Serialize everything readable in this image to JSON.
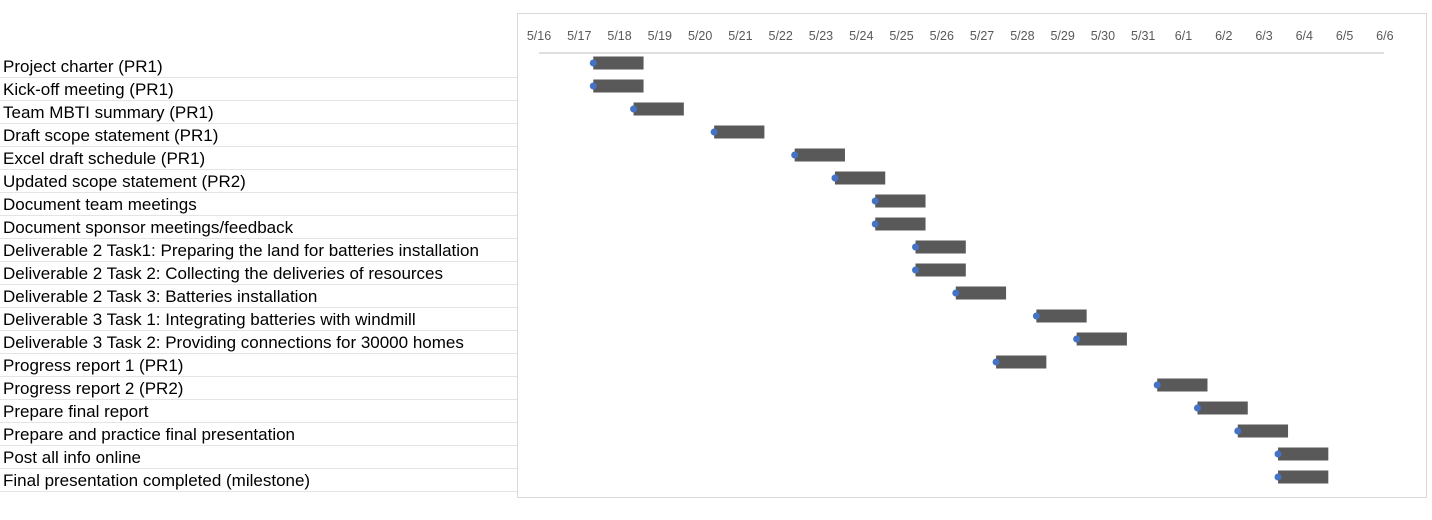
{
  "chart_data": {
    "type": "bar",
    "subtype": "gantt",
    "title": "",
    "xlabel": "",
    "ylabel": "",
    "x_axis_position": "top",
    "xlim": [
      "5/16",
      "6/6"
    ],
    "x_tick_labels": [
      "5/16",
      "5/17",
      "5/18",
      "5/19",
      "5/20",
      "5/21",
      "5/22",
      "5/23",
      "5/24",
      "5/25",
      "5/26",
      "5/27",
      "5/28",
      "5/29",
      "5/30",
      "5/31",
      "6/1",
      "6/2",
      "6/3",
      "6/4",
      "6/5",
      "6/6"
    ],
    "grid": false,
    "legend": "none",
    "colors": {
      "bar": "#595959",
      "start_marker": "#4472c4",
      "row_border": "#e4e4e4",
      "frame": "#d9d9d9",
      "axis_line": "#bfbfbf",
      "tick_text": "#595959"
    },
    "tasks": [
      {
        "name": "Project charter (PR1)",
        "start": "5/17",
        "end": "5/18"
      },
      {
        "name": "Kick-off meeting (PR1)",
        "start": "5/17",
        "end": "5/18"
      },
      {
        "name": "Team MBTI summary (PR1)",
        "start": "5/18",
        "end": "5/19"
      },
      {
        "name": "Draft scope statement (PR1)",
        "start": "5/20",
        "end": "5/21"
      },
      {
        "name": "Excel draft schedule (PR1)",
        "start": "5/22",
        "end": "5/23"
      },
      {
        "name": "Updated scope statement (PR2)",
        "start": "5/23",
        "end": "5/24"
      },
      {
        "name": "Document team meetings",
        "start": "5/24",
        "end": "5/25"
      },
      {
        "name": "Document sponsor meetings/feedback",
        "start": "5/24",
        "end": "5/25"
      },
      {
        "name": "Deliverable 2 Task1: Preparing the land for batteries installation",
        "start": "5/25",
        "end": "5/26"
      },
      {
        "name": "Deliverable 2 Task 2: Collecting the deliveries of resources",
        "start": "5/25",
        "end": "5/26"
      },
      {
        "name": "Deliverable 2 Task 3: Batteries installation",
        "start": "5/26",
        "end": "5/27"
      },
      {
        "name": "Deliverable 3 Task 1: Integrating batteries with windmill",
        "start": "5/28",
        "end": "5/29"
      },
      {
        "name": "Deliverable 3 Task 2: Providing connections for 30000 homes",
        "start": "5/29",
        "end": "5/30"
      },
      {
        "name": "Progress report 1 (PR1)",
        "start": "5/27",
        "end": "5/28"
      },
      {
        "name": "Progress report 2 (PR2)",
        "start": "5/31",
        "end": "6/1"
      },
      {
        "name": "Prepare final report",
        "start": "6/1",
        "end": "6/2"
      },
      {
        "name": "Prepare and practice final presentation",
        "start": "6/2",
        "end": "6/3"
      },
      {
        "name": "Post all info online",
        "start": "6/3",
        "end": "6/4"
      },
      {
        "name": "Final presentation completed (milestone)",
        "start": "6/3",
        "end": "6/4"
      }
    ]
  }
}
